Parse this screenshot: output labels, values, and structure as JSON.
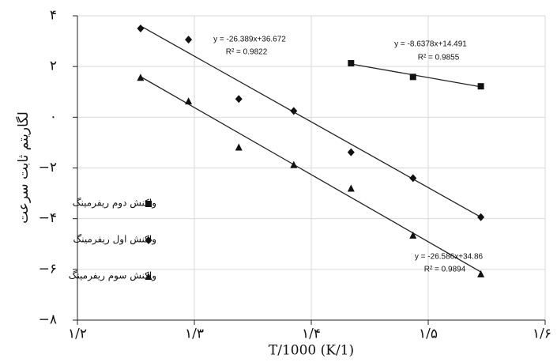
{
  "chart_data": {
    "type": "scatter",
    "xlabel": "T/1000 (K/1)",
    "ylabel": "لگاریتم ثابت سرعت",
    "xlim": [
      1.2,
      1.6
    ],
    "xticks": [
      {
        "value": 1.2,
        "label": "۱/۲"
      },
      {
        "value": 1.3,
        "label": "۱/۳"
      },
      {
        "value": 1.4,
        "label": "۱/۴"
      },
      {
        "value": 1.5,
        "label": "۱/۵"
      },
      {
        "value": 1.6,
        "label": "۱/۶"
      }
    ],
    "ylim": [
      -8,
      4
    ],
    "yticks": [
      {
        "value": -8,
        "label": "−۸"
      },
      {
        "value": -6,
        "label": "−۶"
      },
      {
        "value": -4,
        "label": "−۴"
      },
      {
        "value": -2,
        "label": "−۲"
      },
      {
        "value": 0,
        "label": "۰"
      },
      {
        "value": 2,
        "label": "۲"
      },
      {
        "value": 4,
        "label": "۴"
      }
    ],
    "grid": true,
    "legend": "left",
    "series": [
      {
        "name": "واکنش دوم ریفرمینگ",
        "color": "#111111",
        "marker": "square",
        "x": [
          1.434,
          1.487,
          1.545
        ],
        "values": [
          2.13,
          1.59,
          1.22
        ],
        "trend": {
          "x": [
            1.434,
            1.545
          ],
          "y": [
            2.1,
            1.2
          ]
        }
      },
      {
        "name": "واکنش اول ریفرمینگ",
        "color": "#111111",
        "marker": "diamond",
        "x": [
          1.254,
          1.295,
          1.338,
          1.385,
          1.434,
          1.487,
          1.545
        ],
        "values": [
          3.5,
          3.06,
          0.72,
          0.25,
          -1.38,
          -2.4,
          -3.94
        ],
        "trend": {
          "x": [
            1.254,
            1.545
          ],
          "y": [
            3.6,
            -3.94
          ]
        }
      },
      {
        "name": "واکنش سوم ریفرمینگ",
        "color": "#111111",
        "marker": "triangle",
        "x": [
          1.254,
          1.295,
          1.338,
          1.385,
          1.434,
          1.487,
          1.545
        ],
        "values": [
          1.56,
          0.63,
          -1.19,
          -1.88,
          -2.81,
          -4.66,
          -6.19
        ],
        "trend": {
          "x": [
            1.254,
            1.545
          ],
          "y": [
            1.6,
            -6.1
          ]
        }
      }
    ],
    "annotations": [
      "y = -26.389x+36.672",
      "R² = 0.9822",
      "y = -8.6378x+14.491",
      "R² = 0.9855",
      "y = -26.586x+34.86",
      "R² = 0.9894"
    ]
  }
}
